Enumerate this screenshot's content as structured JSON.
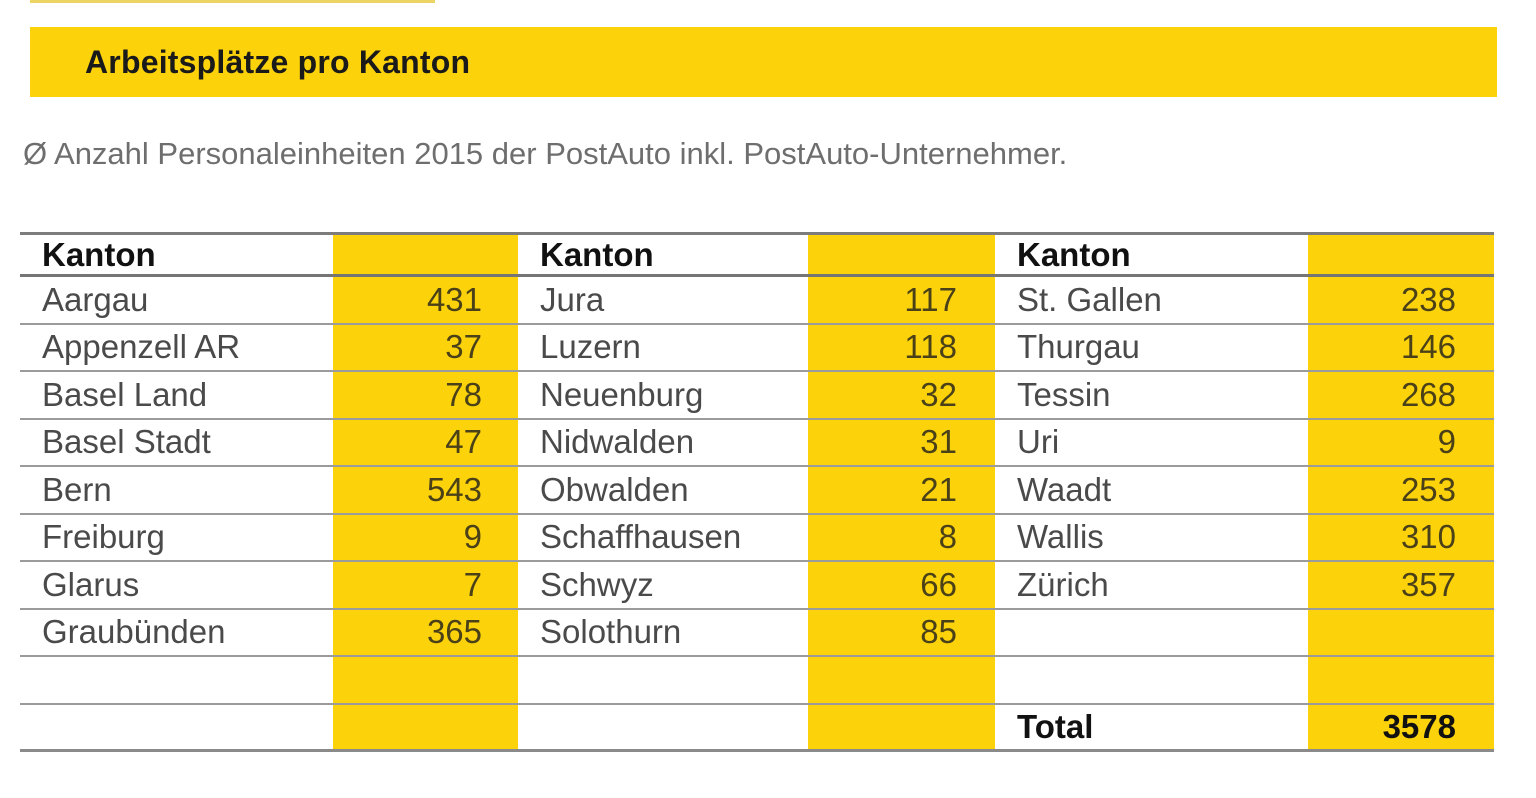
{
  "page": {
    "title": "Arbeitsplätze pro Kanton",
    "subtitle": "Ø Anzahl Personaleinheiten 2015 der PostAuto inkl. PostAuto-Unternehmer."
  },
  "table": {
    "column_header": "Kanton",
    "rows": [
      {
        "cells": [
          "Aargau",
          "431",
          "Jura",
          "117",
          "St. Gallen",
          "238"
        ]
      },
      {
        "cells": [
          "Appenzell AR",
          "37",
          "Luzern",
          "118",
          "Thurgau",
          "146"
        ]
      },
      {
        "cells": [
          "Basel Land",
          "78",
          "Neuenburg",
          "32",
          "Tessin",
          "268"
        ]
      },
      {
        "cells": [
          "Basel Stadt",
          "47",
          "Nidwalden",
          "31",
          "Uri",
          "9"
        ]
      },
      {
        "cells": [
          "Bern",
          "543",
          "Obwalden",
          "21",
          "Waadt",
          "253"
        ]
      },
      {
        "cells": [
          "Freiburg",
          "9",
          "Schaffhausen",
          "8",
          "Wallis",
          "310"
        ]
      },
      {
        "cells": [
          "Glarus",
          "7",
          "Schwyz",
          "66",
          "Zürich",
          "357"
        ]
      },
      {
        "cells": [
          "Graubünden",
          "365",
          "Solothurn",
          "85",
          "",
          ""
        ]
      },
      {
        "cells": [
          "",
          "",
          "",
          "",
          "",
          ""
        ]
      },
      {
        "cells": [
          "",
          "",
          "",
          "",
          "Total",
          "3578"
        ]
      }
    ]
  },
  "colors": {
    "accent_yellow": "#FCD20A",
    "title_text": "#1A1A1A",
    "name_text": "#4A4A4A",
    "value_text": "#4A4118",
    "subtitle_text": "#6E6E6E",
    "separator_line": "#9B9B9B"
  }
}
